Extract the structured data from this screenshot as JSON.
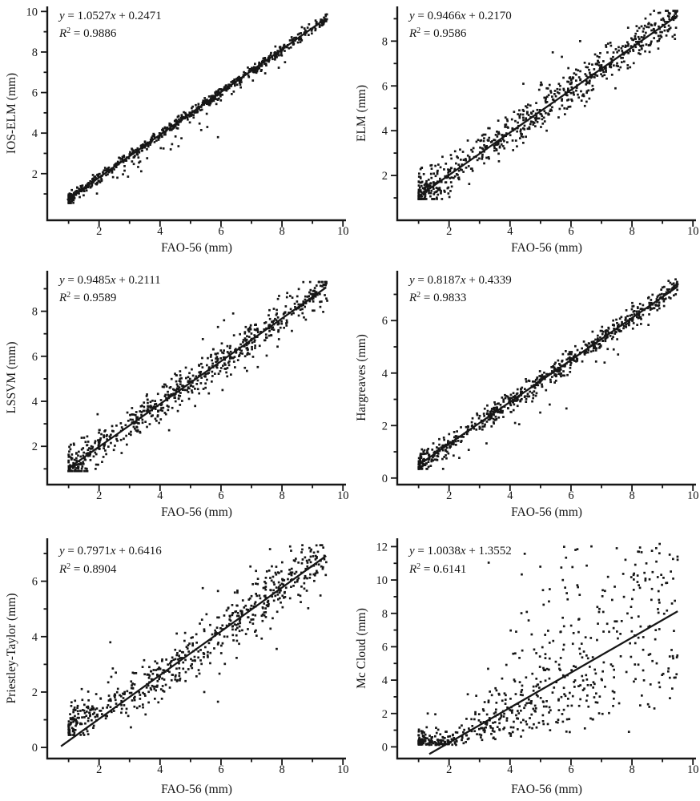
{
  "page": {
    "background": "#ffffff",
    "ink": "#161616"
  },
  "chart_data": [
    {
      "type": "scatter",
      "xlabel": "FAO-56 (mm)",
      "ylabel": "IOS-ELM (mm)",
      "equation_slope": "1.0527",
      "equation_intercept": "0.2471",
      "r_squared": "0.9886",
      "xlim": [
        0.3,
        10.1
      ],
      "ylim": [
        -0.3,
        10.25
      ],
      "xticks": [
        2,
        4,
        6,
        8,
        10
      ],
      "xminor": [
        1,
        3,
        5,
        7,
        9
      ],
      "yticks": [
        2,
        4,
        6,
        8,
        10
      ],
      "yminor": [
        1,
        3,
        5,
        7,
        9
      ],
      "fit_line": {
        "x1": 0.95,
        "x2": 9.45,
        "slope": 1.054,
        "intercept": -0.3
      },
      "scatter_gen": {
        "n": 720,
        "seed": 101,
        "model": "linear",
        "x_min": 1.0,
        "x_max": 9.5,
        "x_skew": 1.9,
        "mix": 0.42,
        "hi_min": 3.0,
        "segments": [
          [
            1.054,
            -0.3
          ]
        ],
        "sigma": 0.13,
        "sigma_x": 0,
        "outlier_frac": 0.05,
        "outlier_sigma": 0.5,
        "outlier_bias": -1,
        "y_clip": [
          0.55,
          10.05
        ]
      },
      "outlier_points": [
        [
          4.35,
          3.2
        ],
        [
          5.35,
          4.15
        ],
        [
          5.55,
          4.3
        ],
        [
          5.9,
          3.8
        ],
        [
          3.35,
          2.6
        ],
        [
          2.6,
          1.8
        ],
        [
          2.95,
          1.85
        ]
      ]
    },
    {
      "type": "scatter",
      "xlabel": "FAO-56 (mm)",
      "ylabel": "ELM (mm)",
      "equation_slope": "0.9466",
      "equation_intercept": "0.2170",
      "r_squared": "0.9586",
      "xlim": [
        0.3,
        10.1
      ],
      "ylim": [
        0.0,
        9.55
      ],
      "xticks": [
        2,
        4,
        6,
        8,
        10
      ],
      "xminor": [
        1,
        3,
        5,
        7,
        9
      ],
      "yticks": [
        2,
        4,
        6,
        8
      ],
      "yminor": [
        1,
        3,
        5,
        7,
        9
      ],
      "fit_line": {
        "x1": 1.0,
        "x2": 9.5,
        "slope": 0.95,
        "intercept": 0.12
      },
      "scatter_gen": {
        "n": 730,
        "seed": 202,
        "model": "linear",
        "x_min": 1.0,
        "x_max": 9.5,
        "x_skew": 1.9,
        "mix": 0.42,
        "hi_min": 3.0,
        "segments": [
          [
            0.95,
            0.12
          ]
        ],
        "sigma": 0.42,
        "sigma_x": 0,
        "outlier_frac": 0.03,
        "outlier_sigma": 0.75,
        "outlier_bias": 0,
        "y_clip": [
          0.95,
          9.35
        ]
      },
      "outlier_points": [
        [
          5.4,
          7.5
        ],
        [
          5.7,
          7.3
        ],
        [
          6.3,
          8.0
        ],
        [
          5.2,
          4.0
        ]
      ]
    },
    {
      "type": "scatter",
      "xlabel": "FAO-56 (mm)",
      "ylabel": "LSSVM (mm)",
      "equation_slope": "0.9485",
      "equation_intercept": "0.2111",
      "r_squared": "0.9589",
      "xlim": [
        0.3,
        10.1
      ],
      "ylim": [
        0.3,
        9.8
      ],
      "xticks": [
        2,
        4,
        6,
        8,
        10
      ],
      "xminor": [
        1,
        3,
        5,
        7,
        9
      ],
      "yticks": [
        2,
        4,
        6,
        8
      ],
      "yminor": [
        1,
        3,
        5,
        7,
        9
      ],
      "fit_line": {
        "x1": 1.0,
        "x2": 9.45,
        "slope": 0.95,
        "intercept": 0.08
      },
      "scatter_gen": {
        "n": 720,
        "seed": 303,
        "model": "linear",
        "x_min": 1.0,
        "x_max": 9.5,
        "x_skew": 1.9,
        "mix": 0.42,
        "hi_min": 3.0,
        "segments": [
          [
            0.95,
            0.08
          ]
        ],
        "sigma": 0.42,
        "sigma_x": 0,
        "outlier_frac": 0.03,
        "outlier_sigma": 0.75,
        "outlier_bias": 0,
        "y_clip": [
          0.9,
          9.3
        ]
      },
      "outlier_points": [
        [
          5.9,
          7.3
        ],
        [
          6.1,
          7.6
        ],
        [
          6.4,
          7.9
        ],
        [
          6.85,
          5.35
        ],
        [
          5.6,
          4.35
        ]
      ]
    },
    {
      "type": "scatter",
      "xlabel": "FAO-56 (mm)",
      "ylabel": "Hargreaves (mm)",
      "equation_slope": "0.8187",
      "equation_intercept": "0.4339",
      "r_squared": "0.9833",
      "xlim": [
        0.3,
        10.1
      ],
      "ylim": [
        -0.25,
        7.9
      ],
      "xticks": [
        2,
        4,
        6,
        8,
        10
      ],
      "xminor": [
        1,
        3,
        5,
        7,
        9
      ],
      "yticks": [
        0,
        2,
        4,
        6
      ],
      "yminor": [
        1,
        3,
        5,
        7
      ],
      "fit_line": {
        "x1": 1.0,
        "x2": 9.5,
        "slope": 0.8,
        "intercept": -0.3
      },
      "scatter_gen": {
        "n": 720,
        "seed": 404,
        "model": "linear",
        "x_min": 1.0,
        "x_max": 9.5,
        "x_skew": 1.9,
        "mix": 0.42,
        "hi_min": 3.0,
        "segments": [
          [
            0.8,
            -0.3
          ]
        ],
        "sigma": 0.19,
        "sigma_x": 0,
        "outlier_frac": 0.04,
        "outlier_sigma": 0.5,
        "outlier_bias": -1,
        "y_clip": [
          0.35,
          7.6
        ]
      },
      "outlier_points": [
        [
          5.85,
          2.65
        ],
        [
          5.3,
          2.8
        ],
        [
          7.4,
          4.9
        ],
        [
          7.1,
          4.4
        ],
        [
          4.3,
          2.05
        ]
      ]
    },
    {
      "type": "scatter",
      "xlabel": "FAO-56 (mm)",
      "ylabel": "Priestley-Taylor (mm)",
      "equation_slope": "0.7971",
      "equation_intercept": "0.6416",
      "r_squared": "0.8904",
      "xlim": [
        0.3,
        10.1
      ],
      "ylim": [
        -0.4,
        7.55
      ],
      "xticks": [
        2,
        4,
        6,
        8,
        10
      ],
      "xminor": [
        1,
        3,
        5,
        7,
        9
      ],
      "yticks": [
        0,
        2,
        4,
        6
      ],
      "yminor": [
        1,
        3,
        5,
        7
      ],
      "fit_line": {
        "x1": 0.75,
        "x2": 9.45,
        "slope": 0.79,
        "intercept": -0.55
      },
      "scatter_gen": {
        "n": 640,
        "seed": 505,
        "model": "linear",
        "x_min": 1.0,
        "x_max": 9.5,
        "x_skew": 1.9,
        "mix": 0.42,
        "hi_min": 3.0,
        "segments": [
          [
            0.79,
            -0.55
          ],
          [
            0.55,
            0.25
          ]
        ],
        "sigma": 0.3,
        "sigma_x": 0.03,
        "outlier_frac": 0.05,
        "outlier_sigma": 0.8,
        "outlier_bias": 0,
        "y_clip": [
          0.45,
          7.3
        ]
      },
      "outlier_points": [
        [
          2.45,
          2.85
        ],
        [
          2.55,
          2.7
        ],
        [
          2.4,
          2.55
        ],
        [
          2.3,
          2.35
        ],
        [
          1.3,
          1.5
        ],
        [
          5.9,
          1.65
        ],
        [
          5.45,
          2.0
        ],
        [
          8.9,
          7.2
        ],
        [
          8.3,
          7.1
        ],
        [
          5.4,
          5.75
        ]
      ]
    },
    {
      "type": "scatter",
      "xlabel": "FAO-56 (mm)",
      "ylabel": "Mc Cloud (mm)",
      "equation_slope": "1.0038",
      "equation_intercept": "1.3552",
      "r_squared": "0.6141",
      "xlim": [
        0.3,
        10.1
      ],
      "ylim": [
        -0.7,
        12.5
      ],
      "xticks": [
        2,
        4,
        6,
        8,
        10
      ],
      "xminor": [
        1,
        3,
        5,
        7,
        9
      ],
      "yticks": [
        0,
        2,
        4,
        6,
        8,
        10,
        12
      ],
      "yminor": [
        1,
        3,
        5,
        7,
        9,
        11
      ],
      "fit_line": {
        "x1": 1.35,
        "x2": 9.5,
        "slope": 1.05,
        "intercept": -1.85
      },
      "scatter_gen": {
        "n": 620,
        "seed": 606,
        "model": "lognorm",
        "x_min": 1.0,
        "x_max": 9.5,
        "x_skew": 2.0,
        "mix": 0.45,
        "hi_min": 3.0,
        "segments": [
          [
            1.05,
            -1.85
          ]
        ],
        "floor": 0.32,
        "sigma": 0.6,
        "y_clip": [
          0.12,
          12.2
        ]
      },
      "outlier_points": [
        [
          1.3,
          2.0
        ],
        [
          1.55,
          1.95
        ],
        [
          4.2,
          6.9
        ],
        [
          5.3,
          9.45
        ],
        [
          7.5,
          11.9
        ],
        [
          8.2,
          11.7
        ],
        [
          8.8,
          11.1
        ],
        [
          7.9,
          0.9
        ],
        [
          9.2,
          4.7
        ]
      ]
    }
  ]
}
